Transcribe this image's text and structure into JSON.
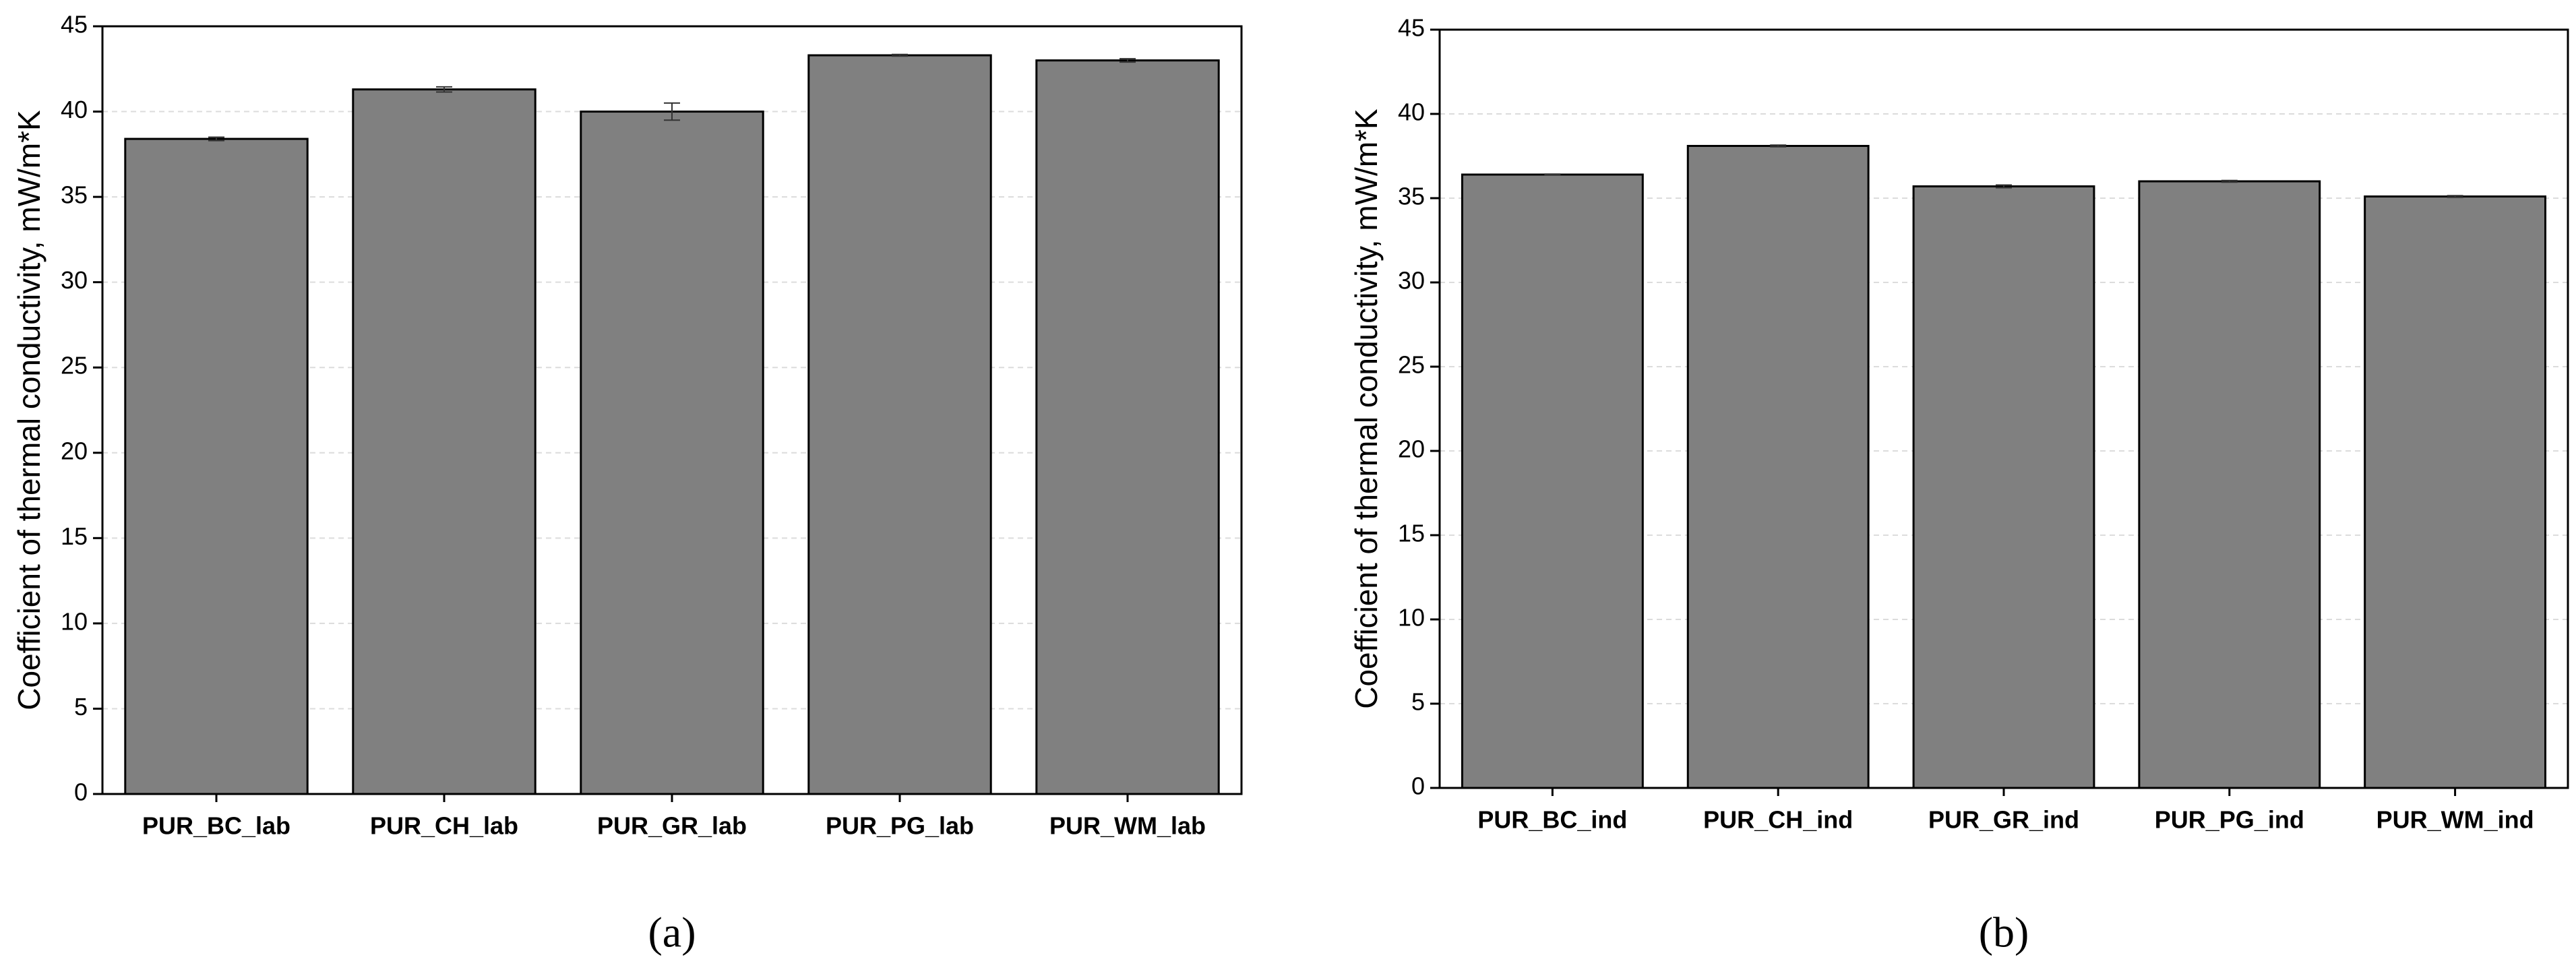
{
  "chart_data": [
    {
      "type": "bar",
      "label": "(a)",
      "y_label": "Coefficient of thermal conductivity, mW/m*K",
      "categories": [
        "PUR_BC_lab",
        "PUR_CH_lab",
        "PUR_GR_lab",
        "PUR_PG_lab",
        "PUR_WM_lab"
      ],
      "values": [
        38.4,
        41.3,
        40.0,
        43.3,
        43.0
      ],
      "errors": [
        0.1,
        0.15,
        0.5,
        0.05,
        0.1
      ],
      "color": "#808080",
      "ylim": [
        0,
        45
      ],
      "yticks": [
        0,
        5,
        10,
        15,
        20,
        25,
        30,
        35,
        40,
        45
      ],
      "grid": true
    },
    {
      "type": "bar",
      "label": "(b)",
      "y_label": "Coefficient of thermal conductivity, mW/m*K",
      "categories": [
        "PUR_BC_ind",
        "PUR_CH_ind",
        "PUR_GR_ind",
        "PUR_PG_ind",
        "PUR_WM_ind"
      ],
      "values": [
        36.4,
        38.1,
        35.7,
        36.0,
        35.1
      ],
      "errors": [
        0.03,
        0.05,
        0.08,
        0.05,
        0.05
      ],
      "color": "#808080",
      "ylim": [
        0,
        45
      ],
      "yticks": [
        0,
        5,
        10,
        15,
        20,
        25,
        30,
        35,
        40,
        45
      ],
      "grid": true
    }
  ]
}
